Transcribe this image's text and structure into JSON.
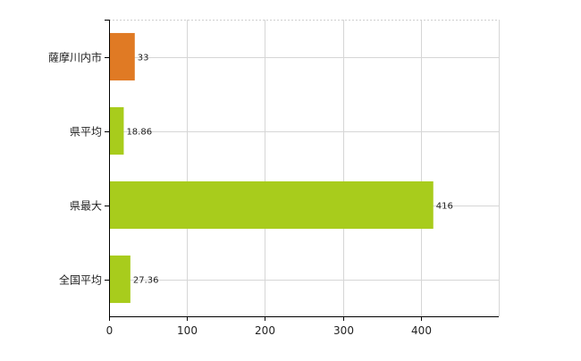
{
  "chart_data": {
    "type": "bar",
    "orientation": "horizontal",
    "categories": [
      "薩摩川内市",
      "県平均",
      "県最大",
      "全国平均"
    ],
    "values": [
      33,
      18.86,
      416,
      27.36
    ],
    "data_labels": [
      "33",
      "18.86",
      "416",
      "27.36"
    ],
    "bar_colors": [
      "#e07a24",
      "#a8cc1c",
      "#a8cc1c",
      "#a8cc1c"
    ],
    "xlim": [
      0,
      500
    ],
    "x_ticks": [
      0,
      100,
      200,
      300,
      400
    ],
    "x_tick_labels": [
      "0",
      "100",
      "200",
      "300",
      "400"
    ],
    "grid": true,
    "title": "",
    "xlabel": "",
    "ylabel": ""
  }
}
